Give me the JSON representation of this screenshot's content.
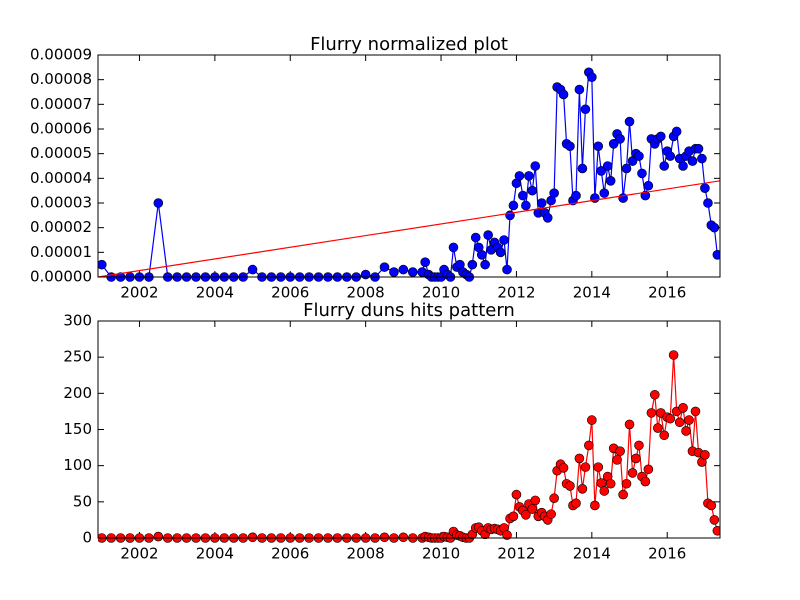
{
  "chart_data": [
    {
      "type": "line",
      "title": "Flurry normalized plot",
      "xlim": [
        2000.9,
        2017.4
      ],
      "xticks": [
        2002,
        2004,
        2006,
        2008,
        2010,
        2012,
        2014,
        2016
      ],
      "ylim": [
        0,
        9e-05
      ],
      "yticks": [
        {
          "value": 0,
          "label": "0.00000"
        },
        {
          "value": 1e-05,
          "label": "0.00001"
        },
        {
          "value": 2e-05,
          "label": "0.00002"
        },
        {
          "value": 3e-05,
          "label": "0.00003"
        },
        {
          "value": 4e-05,
          "label": "0.00004"
        },
        {
          "value": 5e-05,
          "label": "0.00005"
        },
        {
          "value": 6e-05,
          "label": "0.00006"
        },
        {
          "value": 7e-05,
          "label": "0.00007"
        },
        {
          "value": 8e-05,
          "label": "0.00008"
        },
        {
          "value": 9e-05,
          "label": "0.00009"
        }
      ],
      "series": [
        {
          "color": "#0000ff",
          "markers": true,
          "x": [
            2001.0,
            2001.25,
            2001.5,
            2001.75,
            2002.0,
            2002.25,
            2002.5,
            2002.75,
            2003.0,
            2003.25,
            2003.5,
            2003.75,
            2004.0,
            2004.25,
            2004.5,
            2004.75,
            2005.0,
            2005.25,
            2005.5,
            2005.75,
            2006.0,
            2006.25,
            2006.5,
            2006.75,
            2007.0,
            2007.25,
            2007.5,
            2007.75,
            2008.0,
            2008.25,
            2008.5,
            2008.75,
            2009.0,
            2009.25,
            2009.5,
            2009.58,
            2009.67,
            2009.75,
            2009.83,
            2009.92,
            2010.0,
            2010.08,
            2010.17,
            2010.25,
            2010.33,
            2010.42,
            2010.5,
            2010.58,
            2010.67,
            2010.75,
            2010.83,
            2010.92,
            2011.0,
            2011.08,
            2011.17,
            2011.25,
            2011.33,
            2011.42,
            2011.5,
            2011.58,
            2011.67,
            2011.75,
            2011.83,
            2011.92,
            2012.0,
            2012.08,
            2012.17,
            2012.25,
            2012.33,
            2012.42,
            2012.5,
            2012.58,
            2012.67,
            2012.75,
            2012.83,
            2012.92,
            2013.0,
            2013.08,
            2013.17,
            2013.25,
            2013.33,
            2013.42,
            2013.5,
            2013.58,
            2013.67,
            2013.75,
            2013.83,
            2013.92,
            2014.0,
            2014.08,
            2014.17,
            2014.25,
            2014.33,
            2014.42,
            2014.5,
            2014.58,
            2014.67,
            2014.75,
            2014.83,
            2014.92,
            2015.0,
            2015.08,
            2015.17,
            2015.25,
            2015.33,
            2015.42,
            2015.5,
            2015.58,
            2015.67,
            2015.75,
            2015.83,
            2015.92,
            2016.0,
            2016.08,
            2016.17,
            2016.25,
            2016.33,
            2016.42,
            2016.5,
            2016.58,
            2016.67,
            2016.75,
            2016.83,
            2016.92,
            2017.0,
            2017.08,
            2017.17,
            2017.25,
            2017.33
          ],
          "values": [
            5e-06,
            0,
            0,
            0,
            0,
            0,
            3e-05,
            0,
            0,
            0,
            0,
            0,
            0,
            0,
            0,
            0,
            3e-06,
            0,
            0,
            0,
            0,
            0,
            0,
            0,
            0,
            0,
            0,
            0,
            1e-06,
            0,
            4e-06,
            2e-06,
            3e-06,
            2e-06,
            2e-06,
            6e-06,
            1e-06,
            0,
            0,
            0,
            0,
            3e-06,
            1e-06,
            0,
            1.2e-05,
            4e-06,
            5e-06,
            2e-06,
            1e-06,
            0,
            5e-06,
            1.6e-05,
            1.2e-05,
            9e-06,
            5e-06,
            1.7e-05,
            1.1e-05,
            1.4e-05,
            1.2e-05,
            1e-05,
            1.5e-05,
            3e-06,
            2.5e-05,
            2.9e-05,
            3.8e-05,
            4.1e-05,
            3.3e-05,
            2.9e-05,
            4.1e-05,
            3.5e-05,
            4.5e-05,
            2.6e-05,
            3e-05,
            2.6e-05,
            2.4e-05,
            3.1e-05,
            3.4e-05,
            7.7e-05,
            7.6e-05,
            7.4e-05,
            5.4e-05,
            5.3e-05,
            3.1e-05,
            3.3e-05,
            7.6e-05,
            4.4e-05,
            6.8e-05,
            8.3e-05,
            8.1e-05,
            3.2e-05,
            5.3e-05,
            4.3e-05,
            3.4e-05,
            4.5e-05,
            3.9e-05,
            5.4e-05,
            5.8e-05,
            5.6e-05,
            3.2e-05,
            4.4e-05,
            6.3e-05,
            4.7e-05,
            5e-05,
            4.9e-05,
            4.2e-05,
            3.3e-05,
            3.7e-05,
            5.6e-05,
            5.4e-05,
            5.6e-05,
            5.7e-05,
            4.5e-05,
            5.1e-05,
            4.9e-05,
            5.7e-05,
            5.9e-05,
            4.8e-05,
            4.5e-05,
            4.9e-05,
            5.1e-05,
            4.7e-05,
            5.2e-05,
            5.2e-05,
            4.8e-05,
            3.6e-05,
            3e-05,
            2.1e-05,
            2e-05,
            9e-06
          ]
        },
        {
          "color": "#ff0000",
          "markers": false,
          "x": [
            2000.9,
            2017.4
          ],
          "values": [
            0,
            3.9e-05
          ]
        }
      ]
    },
    {
      "type": "line",
      "title": "Flurry duns hits pattern",
      "xlim": [
        2000.9,
        2017.4
      ],
      "xticks": [
        2002,
        2004,
        2006,
        2008,
        2010,
        2012,
        2014,
        2016
      ],
      "ylim": [
        0,
        300
      ],
      "yticks": [
        0,
        50,
        100,
        150,
        200,
        250,
        300
      ],
      "series": [
        {
          "color": "#ff0000",
          "markers": true,
          "x": [
            2001.0,
            2001.25,
            2001.5,
            2001.75,
            2002.0,
            2002.25,
            2002.5,
            2002.75,
            2003.0,
            2003.25,
            2003.5,
            2003.75,
            2004.0,
            2004.25,
            2004.5,
            2004.75,
            2005.0,
            2005.25,
            2005.5,
            2005.75,
            2006.0,
            2006.25,
            2006.5,
            2006.75,
            2007.0,
            2007.25,
            2007.5,
            2007.75,
            2008.0,
            2008.25,
            2008.5,
            2008.75,
            2009.0,
            2009.25,
            2009.5,
            2009.58,
            2009.67,
            2009.75,
            2009.83,
            2009.92,
            2010.0,
            2010.08,
            2010.17,
            2010.25,
            2010.33,
            2010.42,
            2010.5,
            2010.58,
            2010.67,
            2010.75,
            2010.83,
            2010.92,
            2011.0,
            2011.08,
            2011.17,
            2011.25,
            2011.33,
            2011.42,
            2011.5,
            2011.58,
            2011.67,
            2011.75,
            2011.83,
            2011.92,
            2012.0,
            2012.08,
            2012.17,
            2012.25,
            2012.33,
            2012.42,
            2012.5,
            2012.58,
            2012.67,
            2012.75,
            2012.83,
            2012.92,
            2013.0,
            2013.08,
            2013.17,
            2013.25,
            2013.33,
            2013.42,
            2013.5,
            2013.58,
            2013.67,
            2013.75,
            2013.83,
            2013.92,
            2014.0,
            2014.08,
            2014.17,
            2014.25,
            2014.33,
            2014.42,
            2014.5,
            2014.58,
            2014.67,
            2014.75,
            2014.83,
            2014.92,
            2015.0,
            2015.08,
            2015.17,
            2015.25,
            2015.33,
            2015.42,
            2015.5,
            2015.58,
            2015.67,
            2015.75,
            2015.83,
            2015.92,
            2016.0,
            2016.08,
            2016.17,
            2016.25,
            2016.33,
            2016.42,
            2016.5,
            2016.58,
            2016.67,
            2016.75,
            2016.83,
            2016.92,
            2017.0,
            2017.08,
            2017.17,
            2017.25,
            2017.33
          ],
          "values": [
            0,
            0,
            0,
            0,
            0,
            0,
            2,
            0,
            0,
            0,
            0,
            0,
            0,
            0,
            0,
            0,
            1,
            0,
            0,
            0,
            0,
            0,
            0,
            0,
            0,
            0,
            0,
            0,
            0,
            0,
            1,
            0,
            1,
            0,
            0,
            2,
            1,
            0,
            0,
            0,
            0,
            2,
            1,
            0,
            9,
            4,
            3,
            1,
            0,
            0,
            5,
            14,
            15,
            10,
            5,
            14,
            12,
            13,
            12,
            10,
            14,
            4,
            27,
            30,
            60,
            43,
            38,
            32,
            47,
            40,
            52,
            30,
            35,
            30,
            25,
            33,
            55,
            93,
            102,
            97,
            75,
            72,
            45,
            48,
            110,
            68,
            98,
            128,
            163,
            45,
            98,
            76,
            65,
            85,
            75,
            124,
            108,
            120,
            60,
            75,
            157,
            90,
            110,
            128,
            85,
            78,
            95,
            173,
            198,
            152,
            173,
            142,
            167,
            165,
            253,
            175,
            160,
            180,
            148,
            163,
            120,
            175,
            118,
            105,
            115,
            48,
            45,
            25,
            10
          ]
        }
      ]
    }
  ]
}
